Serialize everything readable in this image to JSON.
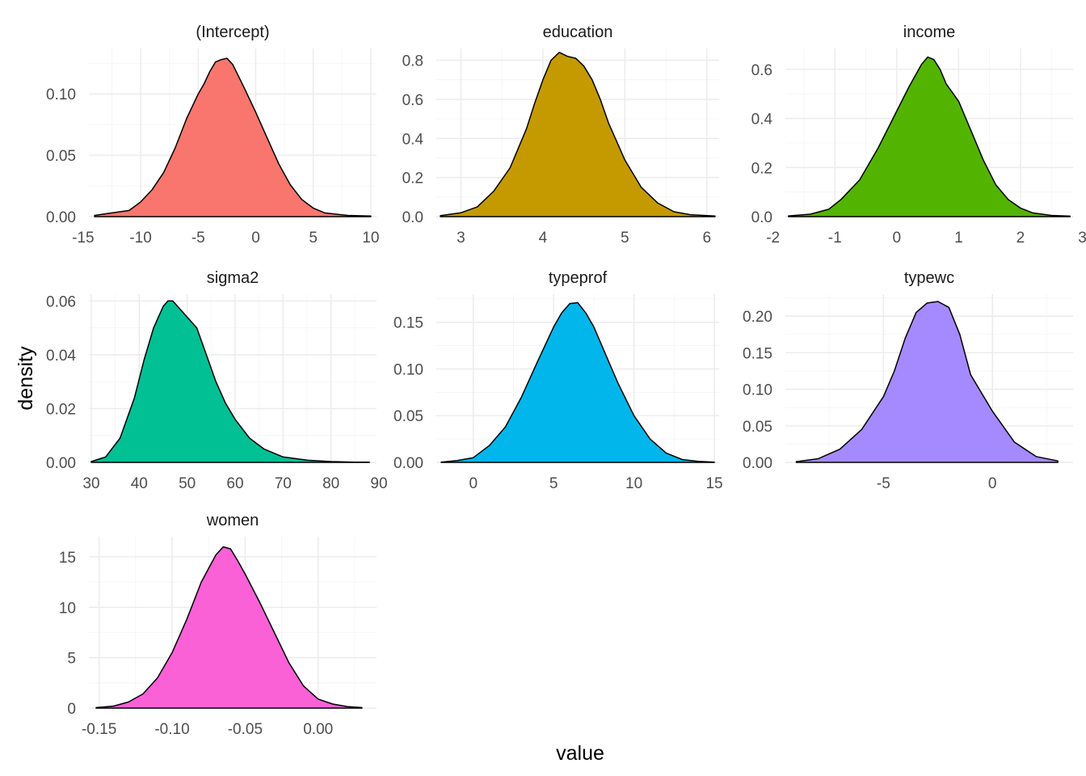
{
  "chart_data": {
    "type": "area",
    "xlabel": "value",
    "ylabel": "density",
    "facets": [
      {
        "title": "(Intercept)",
        "color": "#F8766D",
        "xlim": [
          -14.5,
          10.5
        ],
        "ylim": [
          0,
          0.137
        ],
        "x_ticks": [
          -15,
          -10,
          -5,
          0,
          5,
          10
        ],
        "x_tick_labels": [
          "-15",
          "-10",
          "-5",
          "0",
          "5",
          "10"
        ],
        "y_ticks": [
          0,
          0.05,
          0.1
        ],
        "y_tick_labels": [
          "0.00",
          "0.05",
          "0.10"
        ],
        "curve": {
          "x": [
            -14,
            -12.5,
            -11,
            -10,
            -9,
            -8,
            -7,
            -6,
            -5,
            -4.5,
            -4,
            -3.5,
            -3,
            -2.5,
            -2,
            -1,
            0,
            1,
            2,
            3,
            4,
            5,
            6,
            7,
            8,
            10
          ],
          "y": [
            0.001,
            0.003,
            0.005,
            0.012,
            0.022,
            0.036,
            0.056,
            0.08,
            0.1,
            0.108,
            0.118,
            0.126,
            0.128,
            0.129,
            0.124,
            0.105,
            0.085,
            0.064,
            0.043,
            0.026,
            0.014,
            0.007,
            0.003,
            0.002,
            0.001,
            0.0005
          ]
        }
      },
      {
        "title": "education",
        "color": "#C49A00",
        "xlim": [
          2.7,
          6.15
        ],
        "ylim": [
          0,
          0.86
        ],
        "x_ticks": [
          3,
          4,
          5,
          6
        ],
        "x_tick_labels": [
          "3",
          "4",
          "5",
          "6"
        ],
        "y_ticks": [
          0,
          0.2,
          0.4,
          0.6,
          0.8
        ],
        "y_tick_labels": [
          "0.0",
          "0.2",
          "0.4",
          "0.6",
          "0.8"
        ],
        "curve": {
          "x": [
            2.75,
            3.0,
            3.2,
            3.4,
            3.6,
            3.8,
            3.9,
            4.0,
            4.1,
            4.2,
            4.3,
            4.4,
            4.5,
            4.6,
            4.7,
            4.8,
            5.0,
            5.2,
            5.4,
            5.6,
            5.8,
            6.1
          ],
          "y": [
            0.005,
            0.02,
            0.05,
            0.13,
            0.25,
            0.45,
            0.58,
            0.7,
            0.8,
            0.84,
            0.82,
            0.81,
            0.77,
            0.7,
            0.6,
            0.48,
            0.29,
            0.15,
            0.07,
            0.025,
            0.01,
            0.003
          ]
        }
      },
      {
        "title": "income",
        "color": "#53B400",
        "xlim": [
          -1.8,
          2.85
        ],
        "ylim": [
          0,
          0.685
        ],
        "x_ticks": [
          -2,
          -1,
          0,
          1,
          2,
          3
        ],
        "x_tick_labels": [
          "-2",
          "-1",
          "0",
          "1",
          "2",
          "3"
        ],
        "y_ticks": [
          0,
          0.2,
          0.4,
          0.6
        ],
        "y_tick_labels": [
          "0.0",
          "0.2",
          "0.4",
          "0.6"
        ],
        "curve": {
          "x": [
            -1.75,
            -1.4,
            -1.1,
            -0.9,
            -0.6,
            -0.3,
            0,
            0.2,
            0.4,
            0.5,
            0.6,
            0.7,
            0.8,
            1.0,
            1.2,
            1.4,
            1.6,
            1.8,
            2.0,
            2.2,
            2.5,
            2.8
          ],
          "y": [
            0.003,
            0.01,
            0.03,
            0.07,
            0.15,
            0.28,
            0.43,
            0.53,
            0.62,
            0.65,
            0.64,
            0.6,
            0.54,
            0.47,
            0.35,
            0.23,
            0.13,
            0.07,
            0.035,
            0.015,
            0.005,
            0.002
          ]
        }
      },
      {
        "title": "sigma2",
        "color": "#00C094",
        "xlim": [
          29.5,
          89.5
        ],
        "ylim": [
          0,
          0.0625
        ],
        "x_ticks": [
          30,
          40,
          50,
          60,
          70,
          80,
          90
        ],
        "x_tick_labels": [
          "30",
          "40",
          "50",
          "60",
          "70",
          "80",
          "90"
        ],
        "y_ticks": [
          0,
          0.02,
          0.04,
          0.06
        ],
        "y_tick_labels": [
          "0.00",
          "0.02",
          "0.04",
          "0.06"
        ],
        "curve": {
          "x": [
            30,
            33,
            36,
            39,
            41,
            43,
            45,
            46,
            47,
            48,
            50,
            52,
            54,
            56,
            58,
            60,
            63,
            66,
            70,
            75,
            80,
            85,
            88
          ],
          "y": [
            0.0003,
            0.002,
            0.009,
            0.024,
            0.038,
            0.05,
            0.058,
            0.06,
            0.06,
            0.058,
            0.054,
            0.05,
            0.04,
            0.03,
            0.022,
            0.016,
            0.009,
            0.005,
            0.002,
            0.0008,
            0.0003,
            0.0001,
            0.0001
          ]
        }
      },
      {
        "title": "typeprof",
        "color": "#00B6EB",
        "xlim": [
          -2.3,
          15.3
        ],
        "ylim": [
          0,
          0.18
        ],
        "x_ticks": [
          0,
          5,
          10,
          15
        ],
        "x_tick_labels": [
          "0",
          "5",
          "10",
          "15"
        ],
        "y_ticks": [
          0,
          0.05,
          0.1,
          0.15
        ],
        "y_tick_labels": [
          "0.00",
          "0.05",
          "0.10",
          "0.15"
        ],
        "curve": {
          "x": [
            -2,
            -1,
            0,
            1,
            2,
            3,
            4,
            5,
            5.5,
            6,
            6.5,
            7,
            7.5,
            8,
            9,
            10,
            11,
            12,
            13,
            14,
            15
          ],
          "y": [
            0.0003,
            0.002,
            0.005,
            0.018,
            0.038,
            0.07,
            0.108,
            0.145,
            0.16,
            0.17,
            0.171,
            0.16,
            0.145,
            0.125,
            0.085,
            0.05,
            0.025,
            0.01,
            0.003,
            0.001,
            0.0003
          ]
        }
      },
      {
        "title": "typewc",
        "color": "#A58AFF",
        "xlim": [
          -9.5,
          3.7
        ],
        "ylim": [
          0,
          0.23
        ],
        "x_ticks": [
          -5,
          0
        ],
        "x_tick_labels": [
          "-5",
          "0"
        ],
        "y_ticks": [
          0,
          0.05,
          0.1,
          0.15,
          0.2
        ],
        "y_tick_labels": [
          "0.00",
          "0.05",
          "0.10",
          "0.15",
          "0.20"
        ],
        "curve": {
          "x": [
            -9,
            -8,
            -7,
            -6,
            -5,
            -4.5,
            -4,
            -3.5,
            -3,
            -2.5,
            -2,
            -1.5,
            -1,
            -0.5,
            0,
            1,
            2,
            3
          ],
          "y": [
            0.001,
            0.005,
            0.018,
            0.045,
            0.09,
            0.125,
            0.17,
            0.205,
            0.218,
            0.22,
            0.212,
            0.175,
            0.12,
            0.095,
            0.07,
            0.028,
            0.008,
            0.002
          ]
        }
      },
      {
        "title": "women",
        "color": "#FB61D7",
        "xlim": [
          -0.157,
          0.04
        ],
        "ylim": [
          0,
          17
        ],
        "x_ticks": [
          -0.15,
          -0.1,
          -0.05,
          0.0
        ],
        "x_tick_labels": [
          "-0.15",
          "-0.10",
          "-0.05",
          "0.00"
        ],
        "y_ticks": [
          0,
          5,
          10,
          15
        ],
        "y_tick_labels": [
          "0",
          "5",
          "10",
          "15"
        ],
        "curve": {
          "x": [
            -0.152,
            -0.14,
            -0.13,
            -0.12,
            -0.11,
            -0.1,
            -0.09,
            -0.08,
            -0.07,
            -0.065,
            -0.06,
            -0.055,
            -0.05,
            -0.04,
            -0.03,
            -0.02,
            -0.01,
            0.0,
            0.01,
            0.02,
            0.03
          ],
          "y": [
            0.05,
            0.2,
            0.6,
            1.4,
            3.0,
            5.5,
            8.8,
            12.5,
            15.2,
            16.0,
            15.8,
            14.6,
            13.3,
            10.5,
            7.5,
            4.5,
            2.2,
            0.9,
            0.4,
            0.15,
            0.05
          ]
        }
      }
    ]
  }
}
